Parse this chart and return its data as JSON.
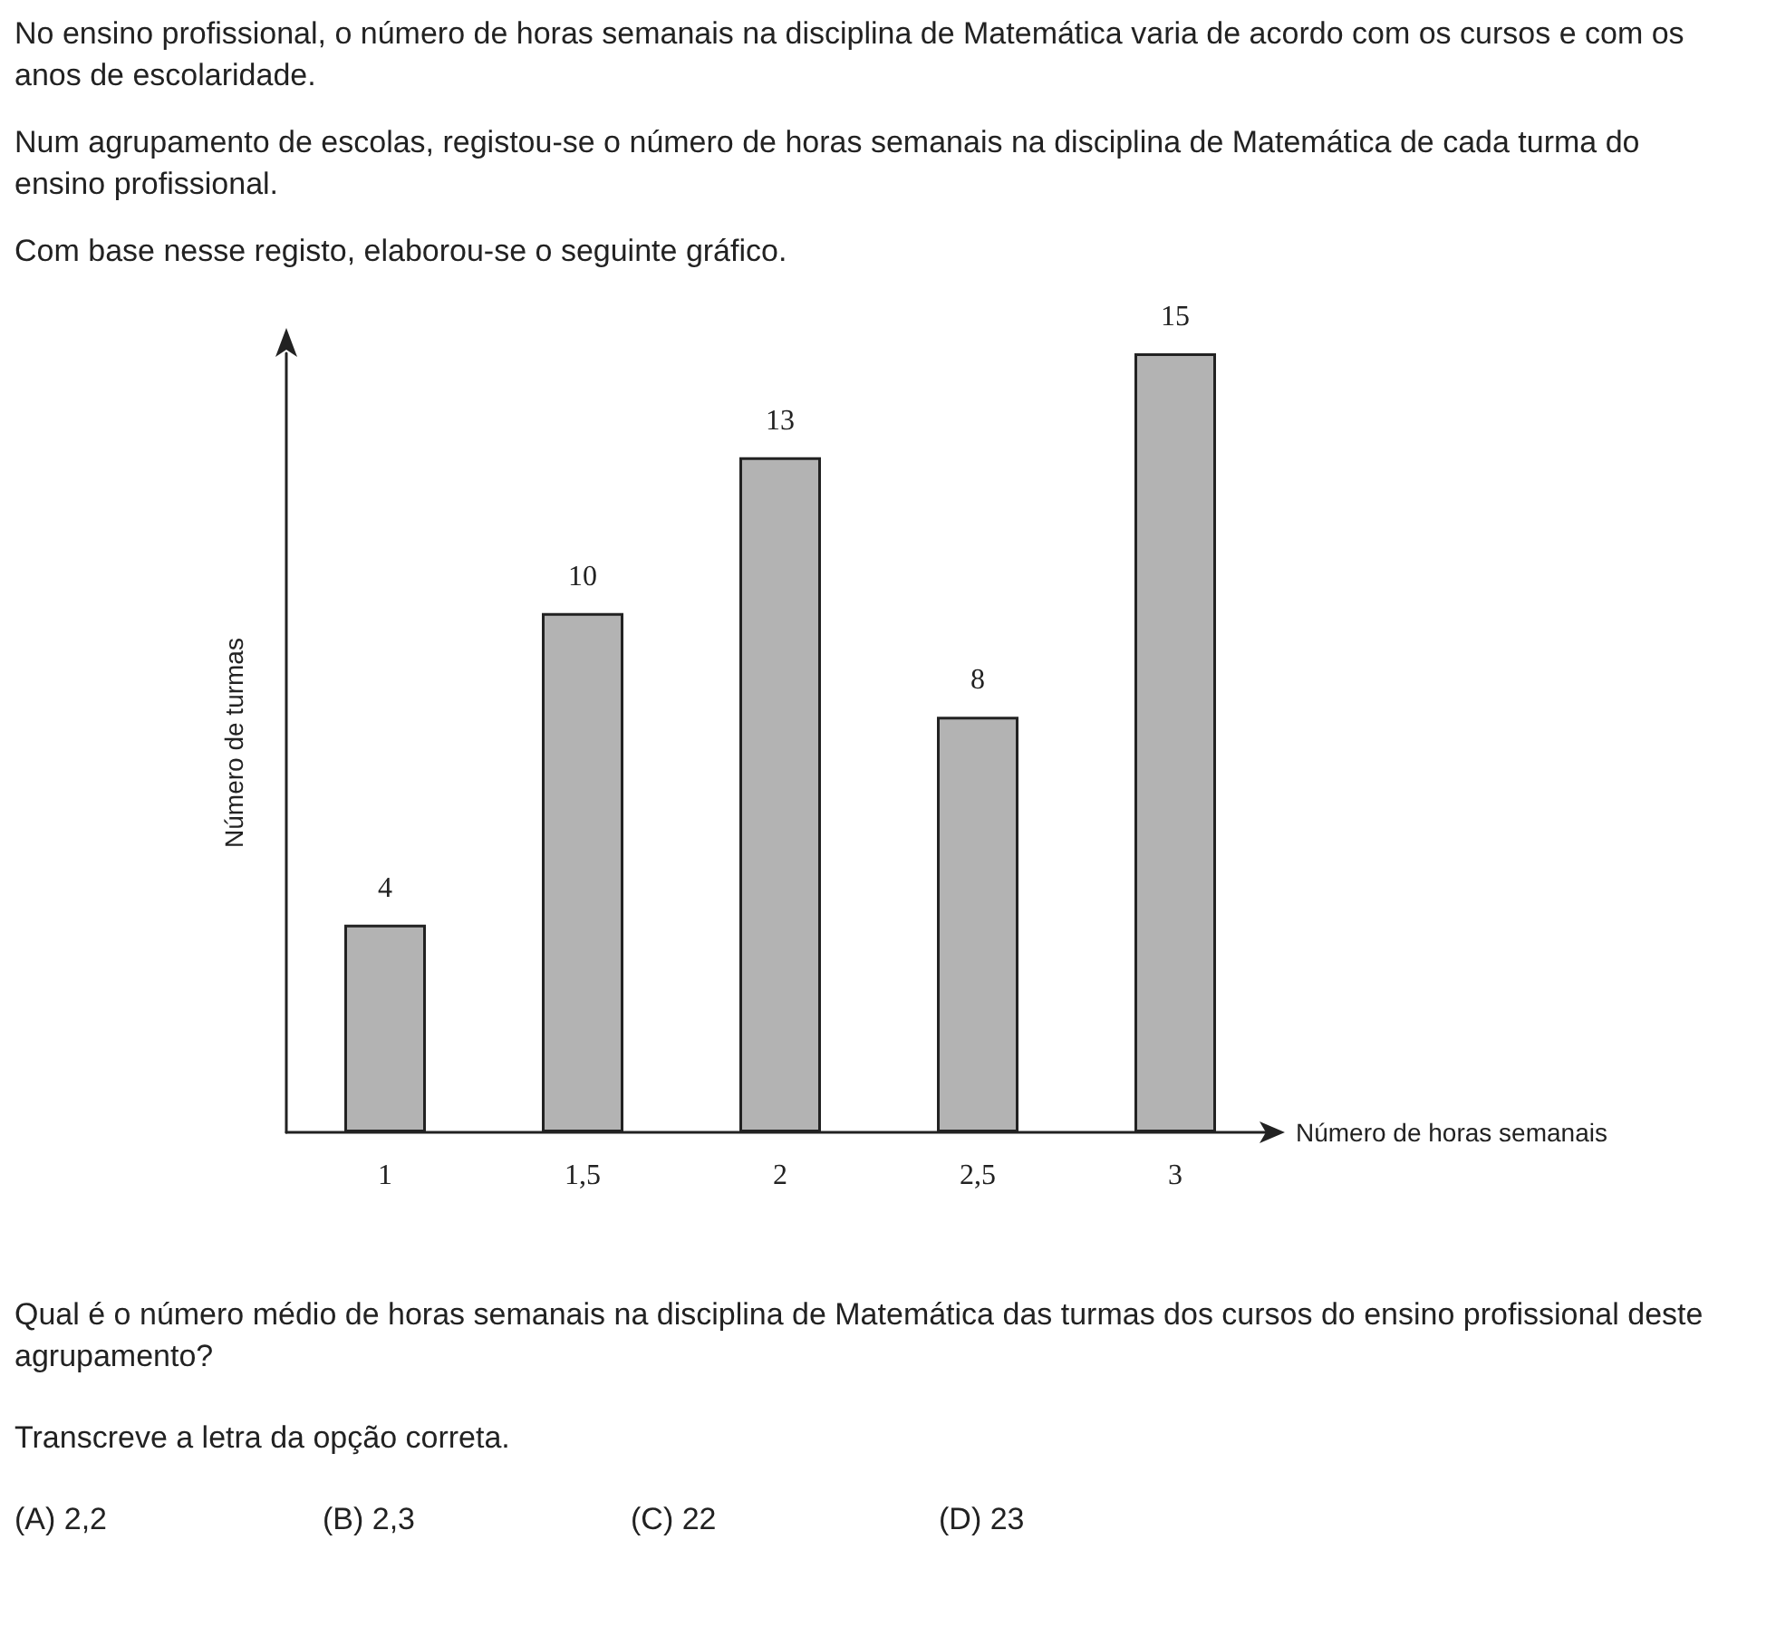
{
  "chart_data": {
    "type": "bar",
    "xlabel": "Número de horas semanais",
    "ylabel": "Número de turmas",
    "categories": [
      "1",
      "1,5",
      "2",
      "2,5",
      "3"
    ],
    "values": [
      4,
      10,
      13,
      8,
      15
    ],
    "color": "#b3b3b3",
    "data_labels": true,
    "grid": false,
    "annotations": [
      "No ensino profissional, o número de horas semanais na disciplina de Matemática varia de acordo com os cursos e com os anos de escolaridade.",
      "Num agrupamento de escolas, registou-se o número de horas semanais na disciplina de Matemática de cada turma do ensino profissional.",
      "Com base nesse registo, elaborou-se o seguinte gráfico.",
      "Qual é o número médio de horas semanais na disciplina de Matemática das turmas dos cursos do ensino profissional deste agrupamento?",
      "Transcreve a letra da opção correta.",
      "(A) 2,2",
      "(B) 2,3",
      "(C) 22",
      "(D) 23"
    ]
  }
}
